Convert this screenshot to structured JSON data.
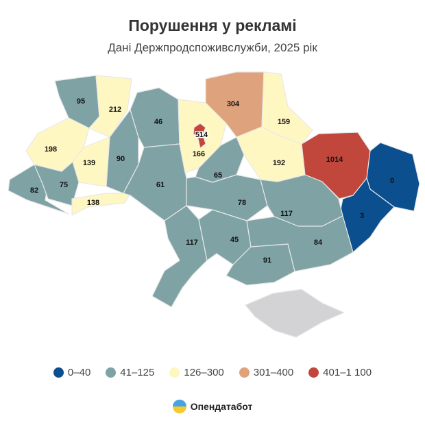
{
  "header": {
    "title": "Порушення у рекламі",
    "subtitle": "Дані Держпродспоживслужби, 2025 рік"
  },
  "colors": {
    "0-40": "#0b4f8f",
    "41-125": "#7fa2a4",
    "126-300": "#fff7c2",
    "301-400": "#dea27c",
    "401-1100": "#c1473c",
    "no_data": "#d3d3d6"
  },
  "regions": [
    {
      "value": "95",
      "class": "41-125"
    },
    {
      "value": "212",
      "class": "126-300"
    },
    {
      "value": "198",
      "class": "126-300"
    },
    {
      "value": "139",
      "class": "126-300"
    },
    {
      "value": "82",
      "class": "41-125"
    },
    {
      "value": "75",
      "class": "41-125"
    },
    {
      "value": "138",
      "class": "126-300"
    },
    {
      "value": "90",
      "class": "41-125"
    },
    {
      "value": "46",
      "class": "41-125"
    },
    {
      "value": "61",
      "class": "41-125"
    },
    {
      "value": "166",
      "class": "126-300"
    },
    {
      "value": "514",
      "class": "401-1100"
    },
    {
      "value": "304",
      "class": "301-400"
    },
    {
      "value": "159",
      "class": "126-300"
    },
    {
      "value": "192",
      "class": "126-300"
    },
    {
      "value": "1014",
      "class": "401-1100"
    },
    {
      "value": "0",
      "class": "0-40"
    },
    {
      "value": "3",
      "class": "0-40"
    },
    {
      "value": "65",
      "class": "41-125"
    },
    {
      "value": "78",
      "class": "41-125"
    },
    {
      "value": "117",
      "class": "41-125"
    },
    {
      "value": "117",
      "class": "41-125"
    },
    {
      "value": "45",
      "class": "41-125"
    },
    {
      "value": "91",
      "class": "41-125"
    },
    {
      "value": "84",
      "class": "41-125"
    },
    {
      "value": "",
      "class": "no_data"
    }
  ],
  "legend": [
    {
      "label": "0–40",
      "color": "#0b4f8f"
    },
    {
      "label": "41–125",
      "color": "#7fa2a4"
    },
    {
      "label": "126–300",
      "color": "#fff7c2"
    },
    {
      "label": "301–400",
      "color": "#dea27c"
    },
    {
      "label": "401–1 100",
      "color": "#c1473c"
    }
  ],
  "brand": {
    "name": "Опендатабот",
    "icon": "opendatabot-logo-icon"
  }
}
